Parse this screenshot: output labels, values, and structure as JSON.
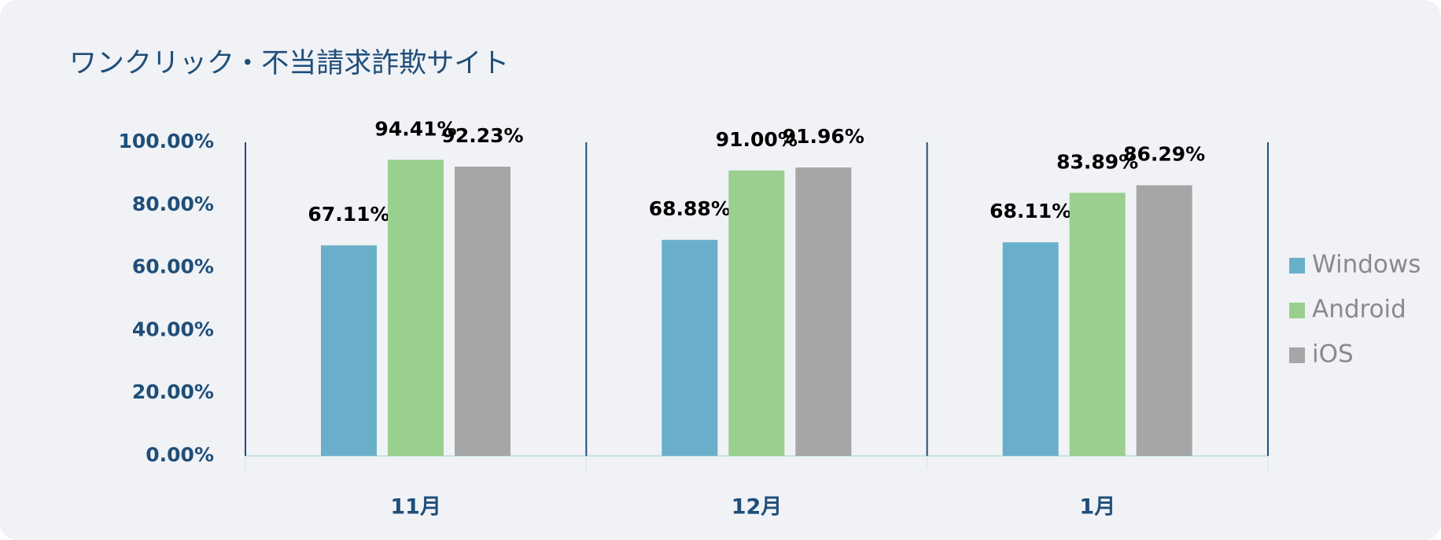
{
  "chart_data": {
    "type": "bar",
    "title": "ワンクリック・不当請求詐欺サイト",
    "categories": [
      "11月",
      "12月",
      "1月"
    ],
    "series": [
      {
        "name": "Windows",
        "color": "#6aafca",
        "values": [
          67.11,
          68.88,
          68.11
        ],
        "value_labels": [
          "67.11%",
          "68.88%",
          "68.11%"
        ]
      },
      {
        "name": "Android",
        "color": "#9acf8f",
        "values": [
          94.41,
          91.0,
          83.89
        ],
        "value_labels": [
          "94.41%",
          "91.00%",
          "83.89%"
        ]
      },
      {
        "name": "iOS",
        "color": "#a6a6a6",
        "values": [
          92.23,
          91.96,
          86.29
        ],
        "value_labels": [
          "92.23%",
          "91.96%",
          "86.29%"
        ]
      }
    ],
    "ylim": [
      0,
      100
    ],
    "yticks": [
      {
        "value": 0,
        "label": "0.00%"
      },
      {
        "value": 20,
        "label": "20.00%"
      },
      {
        "value": 40,
        "label": "40.00%"
      },
      {
        "value": 60,
        "label": "60.00%"
      },
      {
        "value": 80,
        "label": "80.00%"
      },
      {
        "value": 100,
        "label": "100.00%"
      }
    ],
    "legend": "right"
  }
}
